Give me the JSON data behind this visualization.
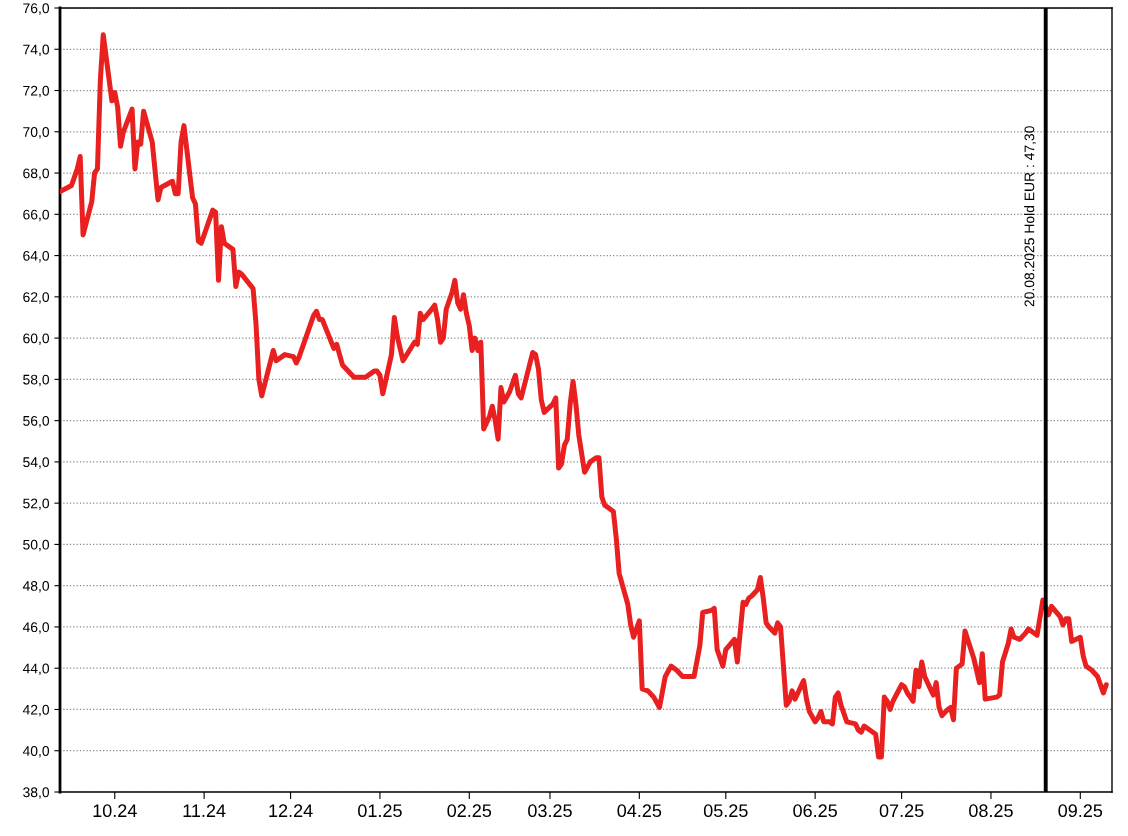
{
  "chart_data": {
    "type": "line",
    "x": [
      "2024-09-12",
      "2024-09-16",
      "2024-09-18",
      "2024-09-19",
      "2024-09-20",
      "2024-09-23",
      "2024-09-24",
      "2024-09-25",
      "2024-09-26",
      "2024-09-27",
      "2024-09-30",
      "2024-10-01",
      "2024-10-02",
      "2024-10-03",
      "2024-10-04",
      "2024-10-07",
      "2024-10-08",
      "2024-10-09",
      "2024-10-10",
      "2024-10-11",
      "2024-10-14",
      "2024-10-15",
      "2024-10-16",
      "2024-10-17",
      "2024-10-21",
      "2024-10-22",
      "2024-10-23",
      "2024-10-24",
      "2024-10-25",
      "2024-10-28",
      "2024-10-29",
      "2024-10-30",
      "2024-10-31",
      "2024-11-04",
      "2024-11-05",
      "2024-11-06",
      "2024-11-07",
      "2024-11-08",
      "2024-11-11",
      "2024-11-12",
      "2024-11-13",
      "2024-11-14",
      "2024-11-18",
      "2024-11-19",
      "2024-11-20",
      "2024-11-21",
      "2024-11-25",
      "2024-11-26",
      "2024-11-29",
      "2024-12-02",
      "2024-12-03",
      "2024-12-04",
      "2024-12-09",
      "2024-12-10",
      "2024-12-11",
      "2024-12-12",
      "2024-12-16",
      "2024-12-17",
      "2024-12-18",
      "2024-12-19",
      "2024-12-23",
      "2024-12-27",
      "2024-12-30",
      "2024-12-31",
      "2025-01-01",
      "2025-01-02",
      "2025-01-05",
      "2025-01-06",
      "2025-01-07",
      "2025-01-09",
      "2025-01-13",
      "2025-01-14",
      "2025-01-15",
      "2025-01-16",
      "2025-01-19",
      "2025-01-20",
      "2025-01-21",
      "2025-01-22",
      "2025-01-23",
      "2025-01-24",
      "2025-01-26",
      "2025-01-27",
      "2025-01-28",
      "2025-01-29",
      "2025-01-30",
      "2025-01-31",
      "2025-02-01",
      "2025-02-02",
      "2025-02-03",
      "2025-02-04",
      "2025-02-05",
      "2025-02-06",
      "2025-02-08",
      "2025-02-09",
      "2025-02-10",
      "2025-02-11",
      "2025-02-12",
      "2025-02-13",
      "2025-02-15",
      "2025-02-17",
      "2025-02-18",
      "2025-02-19",
      "2025-02-21",
      "2025-02-23",
      "2025-02-24",
      "2025-02-25",
      "2025-02-26",
      "2025-02-27",
      "2025-03-02",
      "2025-03-03",
      "2025-03-04",
      "2025-03-05",
      "2025-03-06",
      "2025-03-07",
      "2025-03-08",
      "2025-03-09",
      "2025-03-10",
      "2025-03-11",
      "2025-03-13",
      "2025-03-15",
      "2025-03-17",
      "2025-03-18",
      "2025-03-19",
      "2025-03-20",
      "2025-03-21",
      "2025-03-23",
      "2025-03-24",
      "2025-03-25",
      "2025-03-28",
      "2025-03-29",
      "2025-03-30",
      "2025-04-01",
      "2025-04-02",
      "2025-04-04",
      "2025-04-06",
      "2025-04-08",
      "2025-04-10",
      "2025-04-12",
      "2025-04-14",
      "2025-04-16",
      "2025-04-20",
      "2025-04-22",
      "2025-04-23",
      "2025-04-26",
      "2025-04-27",
      "2025-04-28",
      "2025-04-30",
      "2025-05-01",
      "2025-05-04",
      "2025-05-05",
      "2025-05-07",
      "2025-05-08",
      "2025-05-09",
      "2025-05-10",
      "2025-05-12",
      "2025-05-13",
      "2025-05-14",
      "2025-05-15",
      "2025-05-16",
      "2025-05-18",
      "2025-05-19",
      "2025-05-20",
      "2025-05-22",
      "2025-05-23",
      "2025-05-24",
      "2025-05-25",
      "2025-05-26",
      "2025-05-28",
      "2025-05-29",
      "2025-05-30",
      "2025-06-01",
      "2025-06-02",
      "2025-06-03",
      "2025-06-04",
      "2025-06-06",
      "2025-06-07",
      "2025-06-08",
      "2025-06-09",
      "2025-06-10",
      "2025-06-12",
      "2025-06-15",
      "2025-06-16",
      "2025-06-17",
      "2025-06-18",
      "2025-06-19",
      "2025-06-22",
      "2025-06-23",
      "2025-06-24",
      "2025-06-25",
      "2025-06-26",
      "2025-06-27",
      "2025-06-28",
      "2025-07-01",
      "2025-07-02",
      "2025-07-03",
      "2025-07-04",
      "2025-07-05",
      "2025-07-06",
      "2025-07-07",
      "2025-07-08",
      "2025-07-09",
      "2025-07-11",
      "2025-07-12",
      "2025-07-13",
      "2025-07-14",
      "2025-07-15",
      "2025-07-17",
      "2025-07-18",
      "2025-07-19",
      "2025-07-20",
      "2025-07-22",
      "2025-07-23",
      "2025-07-26",
      "2025-07-28",
      "2025-07-29",
      "2025-07-30",
      "2025-08-03",
      "2025-08-04",
      "2025-08-05",
      "2025-08-07",
      "2025-08-08",
      "2025-08-09",
      "2025-08-11",
      "2025-08-13",
      "2025-08-14",
      "2025-08-17",
      "2025-08-19",
      "2025-08-21",
      "2025-08-22",
      "2025-08-25",
      "2025-08-26",
      "2025-08-27",
      "2025-08-28",
      "2025-08-29",
      "2025-09-01",
      "2025-09-02",
      "2025-09-03",
      "2025-09-05",
      "2025-09-07",
      "2025-09-09",
      "2025-09-10"
    ],
    "series": [
      {
        "color": "#e8201f",
        "values": [
          67.1,
          67.4,
          68.2,
          68.8,
          65.0,
          66.6,
          68.0,
          68.2,
          72.5,
          74.7,
          71.5,
          71.9,
          71.2,
          69.3,
          70.0,
          71.1,
          68.2,
          69.5,
          69.4,
          71.0,
          69.5,
          68.1,
          66.7,
          67.3,
          67.6,
          67.0,
          67.0,
          69.5,
          70.3,
          66.8,
          66.5,
          64.7,
          64.6,
          66.2,
          66.1,
          62.8,
          65.4,
          64.6,
          64.3,
          62.5,
          63.2,
          63.1,
          62.4,
          60.7,
          58.0,
          57.2,
          59.4,
          58.9,
          59.2,
          59.1,
          58.8,
          59.1,
          61.1,
          61.3,
          60.9,
          60.9,
          59.5,
          59.7,
          59.2,
          58.7,
          58.1,
          58.1,
          58.4,
          58.4,
          58.2,
          57.3,
          59.2,
          61.0,
          60.1,
          58.9,
          59.8,
          59.7,
          61.2,
          60.9,
          61.4,
          61.6,
          60.9,
          59.8,
          60.0,
          61.4,
          62.2,
          62.8,
          61.7,
          61.4,
          62.1,
          61.2,
          60.6,
          59.4,
          60.0,
          59.4,
          59.8,
          55.6,
          56.2,
          56.7,
          56.0,
          55.1,
          57.6,
          56.9,
          57.4,
          58.2,
          57.3,
          57.1,
          58.2,
          59.3,
          59.2,
          58.5,
          57.0,
          56.4,
          56.8,
          57.1,
          53.7,
          53.9,
          54.8,
          55.1,
          56.8,
          57.9,
          56.8,
          55.3,
          53.5,
          54.0,
          54.2,
          54.2,
          52.3,
          51.9,
          51.8,
          51.6,
          50.3,
          48.6,
          47.1,
          46.1,
          45.5,
          46.3,
          43.0,
          42.9,
          42.6,
          42.1,
          43.6,
          44.1,
          43.9,
          43.6,
          43.6,
          45.1,
          46.7,
          46.8,
          46.9,
          44.9,
          44.1,
          44.9,
          45.4,
          44.3,
          47.2,
          47.1,
          47.4,
          47.5,
          47.8,
          48.4,
          47.4,
          46.2,
          46.0,
          45.7,
          46.2,
          46.0,
          42.2,
          42.4,
          42.9,
          42.5,
          42.8,
          43.4,
          42.5,
          41.9,
          41.4,
          41.6,
          41.9,
          41.4,
          41.4,
          41.3,
          42.6,
          42.8,
          42.2,
          41.4,
          41.3,
          41.0,
          40.9,
          41.2,
          41.1,
          40.8,
          39.7,
          39.7,
          42.6,
          42.4,
          42.0,
          42.4,
          43.2,
          43.1,
          42.8,
          42.6,
          42.4,
          43.9,
          43.1,
          44.3,
          43.6,
          43.0,
          42.7,
          43.3,
          42.1,
          41.7,
          42.0,
          42.1,
          41.5,
          44.0,
          44.2,
          45.8,
          44.5,
          43.3,
          44.7,
          42.5,
          42.6,
          42.7,
          44.3,
          45.2,
          45.9,
          45.5,
          45.4,
          45.7,
          45.9,
          45.6,
          47.3,
          46.6,
          47.0,
          46.5,
          46.1,
          46.4,
          46.4,
          45.3,
          45.5,
          44.6,
          44.1,
          43.9,
          43.6,
          42.8,
          43.2
        ]
      }
    ],
    "xlim": [
      "2024-09-12",
      "2025-09-12"
    ],
    "xticks": [
      {
        "value": "2024-10-01",
        "label": "10.24"
      },
      {
        "value": "2024-11-01",
        "label": "11.24"
      },
      {
        "value": "2024-12-01",
        "label": "12.24"
      },
      {
        "value": "2025-01-01",
        "label": "01.25"
      },
      {
        "value": "2025-02-01",
        "label": "02.25"
      },
      {
        "value": "2025-03-01",
        "label": "03.25"
      },
      {
        "value": "2025-04-01",
        "label": "04.25"
      },
      {
        "value": "2025-05-01",
        "label": "05.25"
      },
      {
        "value": "2025-06-01",
        "label": "06.25"
      },
      {
        "value": "2025-07-01",
        "label": "07.25"
      },
      {
        "value": "2025-08-01",
        "label": "08.25"
      },
      {
        "value": "2025-09-01",
        "label": "09.25"
      }
    ],
    "ylim": [
      38,
      76
    ],
    "yticks": [
      {
        "value": 38,
        "label": "38,0"
      },
      {
        "value": 40,
        "label": "40,0"
      },
      {
        "value": 42,
        "label": "42,0"
      },
      {
        "value": 44,
        "label": "44,0"
      },
      {
        "value": 46,
        "label": "46,0"
      },
      {
        "value": 48,
        "label": "48,0"
      },
      {
        "value": 50,
        "label": "50,0"
      },
      {
        "value": 52,
        "label": "52,0"
      },
      {
        "value": 54,
        "label": "54,0"
      },
      {
        "value": 56,
        "label": "56,0"
      },
      {
        "value": 58,
        "label": "58,0"
      },
      {
        "value": 60,
        "label": "60,0"
      },
      {
        "value": 62,
        "label": "62,0"
      },
      {
        "value": 64,
        "label": "64,0"
      },
      {
        "value": 66,
        "label": "66,0"
      },
      {
        "value": 68,
        "label": "68,0"
      },
      {
        "value": 70,
        "label": "70,0"
      },
      {
        "value": 72,
        "label": "72,0"
      },
      {
        "value": 74,
        "label": "74,0"
      },
      {
        "value": 76,
        "label": "76,0"
      }
    ],
    "grid": "y",
    "line_style": "solid",
    "marker": "none",
    "ref_lines": [
      {
        "axis": "x",
        "value": "2025-08-20",
        "label": "20.08.2025 Hold EUR : 47,30",
        "color": "#000000",
        "line_style": "solid"
      }
    ]
  }
}
